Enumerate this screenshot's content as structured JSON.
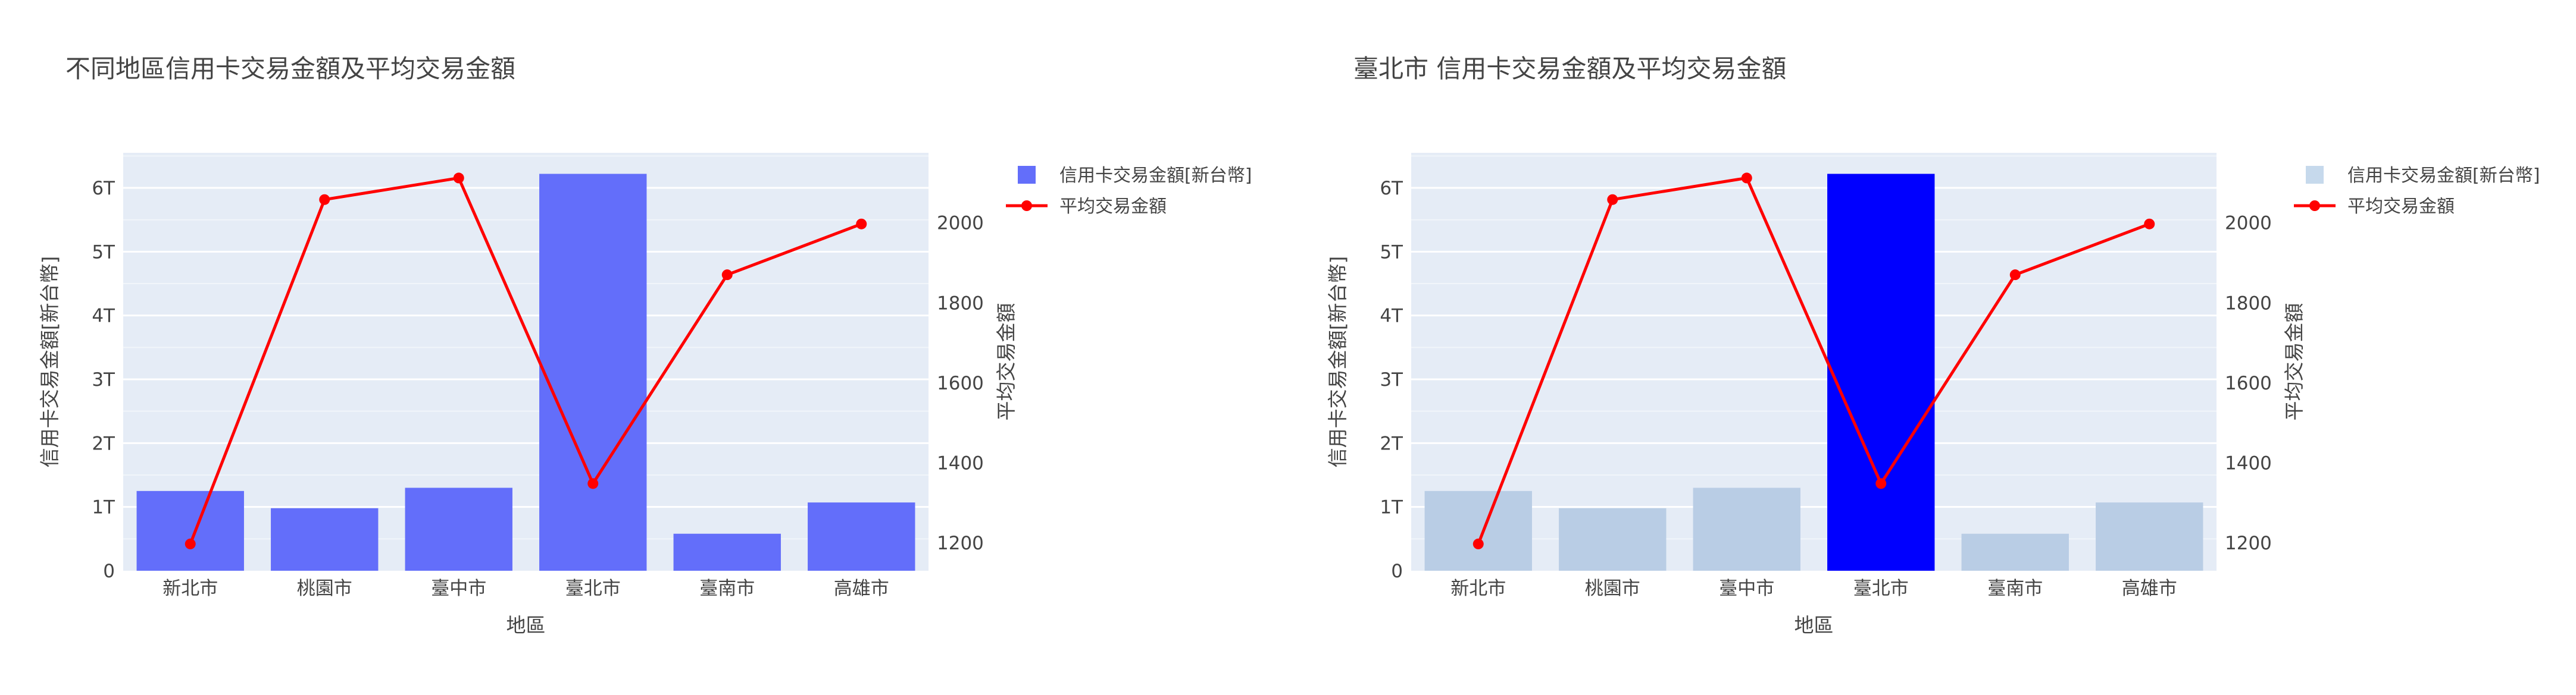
{
  "chart_data": [
    {
      "type": "bar+line",
      "title": "不同地區信用卡交易金額及平均交易金額",
      "xlabel": "地區",
      "ylabel": "信用卡交易金額[新台幣]",
      "y2label": "平均交易金額",
      "categories": [
        "新北市",
        "桃園市",
        "臺中市",
        "臺北市",
        "臺南市",
        "高雄市"
      ],
      "ylim": [
        0,
        6.55
      ],
      "y_ticks": [
        "0",
        "1T",
        "2T",
        "3T",
        "4T",
        "5T",
        "6T"
      ],
      "y2lim": [
        1130,
        2175
      ],
      "y2_ticks": [
        "1200",
        "1400",
        "1600",
        "1800",
        "2000"
      ],
      "series": [
        {
          "name": "信用卡交易金額[新台幣]",
          "type": "bar",
          "unit": "T",
          "values": [
            1.25,
            0.98,
            1.3,
            6.22,
            0.58,
            1.07
          ],
          "colors": [
            "#636efa",
            "#636efa",
            "#636efa",
            "#636efa",
            "#636efa",
            "#636efa"
          ]
        },
        {
          "name": "平均交易金額",
          "type": "line",
          "color": "#ff0000",
          "values": [
            1197,
            2058,
            2112,
            1348,
            1870,
            1997
          ]
        }
      ],
      "legend_position": "top-right",
      "grid": true
    },
    {
      "type": "bar+line",
      "title": "臺北市 信用卡交易金額及平均交易金額",
      "xlabel": "地區",
      "ylabel": "信用卡交易金額[新台幣]",
      "y2label": "平均交易金額",
      "categories": [
        "新北市",
        "桃園市",
        "臺中市",
        "臺北市",
        "臺南市",
        "高雄市"
      ],
      "ylim": [
        0,
        6.55
      ],
      "y_ticks": [
        "0",
        "1T",
        "2T",
        "3T",
        "4T",
        "5T",
        "6T"
      ],
      "y2lim": [
        1130,
        2175
      ],
      "y2_ticks": [
        "1200",
        "1400",
        "1600",
        "1800",
        "2000"
      ],
      "series": [
        {
          "name": "信用卡交易金額[新台幣]",
          "type": "bar",
          "unit": "T",
          "values": [
            1.25,
            0.98,
            1.3,
            6.22,
            0.58,
            1.07
          ],
          "colors": [
            "#b9cde5",
            "#b9cde5",
            "#b9cde5",
            "#0000ff",
            "#b9cde5",
            "#b9cde5"
          ],
          "legend_color": "#c6d9ec"
        },
        {
          "name": "平均交易金額",
          "type": "line",
          "color": "#ff0000",
          "values": [
            1197,
            2058,
            2112,
            1348,
            1870,
            1997
          ]
        }
      ],
      "legend_position": "top-right",
      "grid": true
    }
  ]
}
